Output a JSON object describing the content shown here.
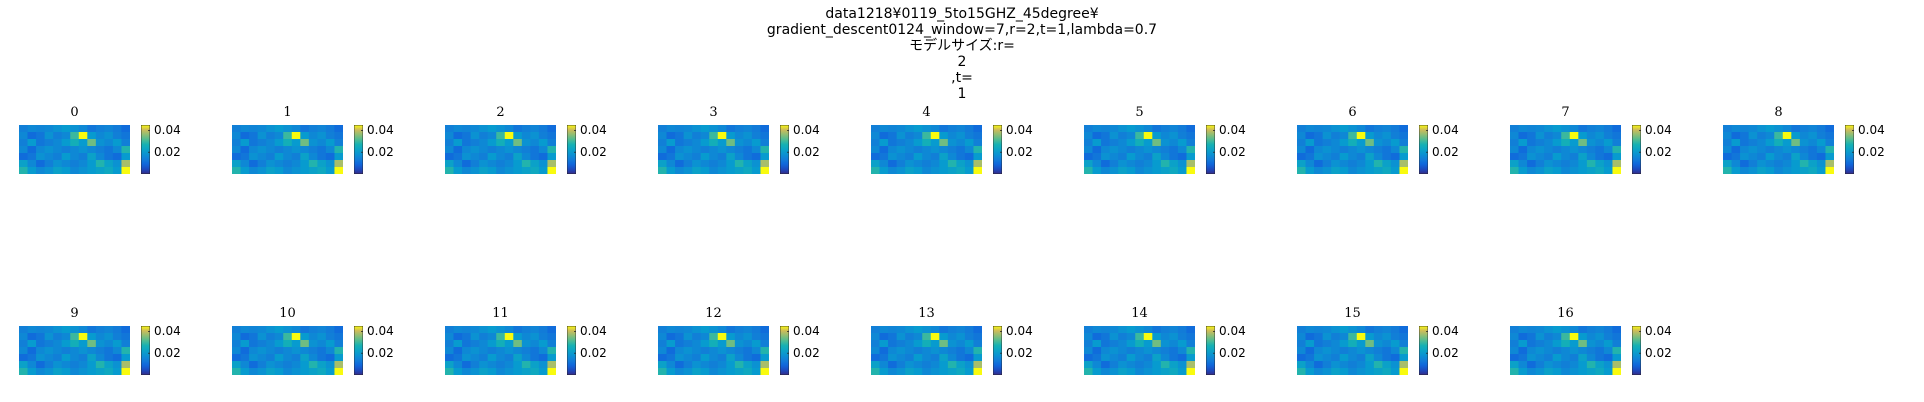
{
  "title_lines": [
    "data1218¥0119_5to15GHZ_45degree¥",
    "gradient_descent0124_window=7,r=2,t=1,lambda=0.7",
    "モデルサイズ:r=",
    "2",
    ",t=",
    "1"
  ],
  "chart_data": {
    "type": "heatmap",
    "colormap": "parula",
    "grid": false,
    "colorbar_ticks": [
      "0.04",
      "0.02"
    ],
    "colorbar_tick_values": [
      0.04,
      0.02
    ],
    "color_range": [
      0.0,
      0.045
    ],
    "panel_labels": [
      "0",
      "1",
      "2",
      "3",
      "4",
      "5",
      "6",
      "7",
      "8",
      "9",
      "10",
      "11",
      "12",
      "13",
      "14",
      "15",
      "16"
    ],
    "rows": 7,
    "cols": 13,
    "cell_values": [
      [
        0.014,
        0.016,
        0.015,
        0.016,
        0.018,
        0.02,
        0.018,
        0.016,
        0.012,
        0.014,
        0.015,
        0.013,
        0.01
      ],
      [
        0.016,
        0.01,
        0.012,
        0.018,
        0.014,
        0.016,
        0.03,
        0.046,
        0.02,
        0.016,
        0.018,
        0.014,
        0.012
      ],
      [
        0.014,
        0.02,
        0.012,
        0.014,
        0.016,
        0.02,
        0.026,
        0.02,
        0.034,
        0.018,
        0.016,
        0.02,
        0.014
      ],
      [
        0.016,
        0.01,
        0.016,
        0.018,
        0.016,
        0.014,
        0.016,
        0.018,
        0.016,
        0.014,
        0.012,
        0.016,
        0.028
      ],
      [
        0.01,
        0.012,
        0.018,
        0.016,
        0.014,
        0.02,
        0.016,
        0.014,
        0.022,
        0.016,
        0.012,
        0.01,
        0.02
      ],
      [
        0.022,
        0.016,
        0.01,
        0.014,
        0.018,
        0.016,
        0.014,
        0.016,
        0.02,
        0.028,
        0.022,
        0.018,
        0.038
      ],
      [
        0.028,
        0.02,
        0.016,
        0.018,
        0.022,
        0.02,
        0.016,
        0.018,
        0.02,
        0.022,
        0.024,
        0.02,
        0.046
      ]
    ]
  }
}
